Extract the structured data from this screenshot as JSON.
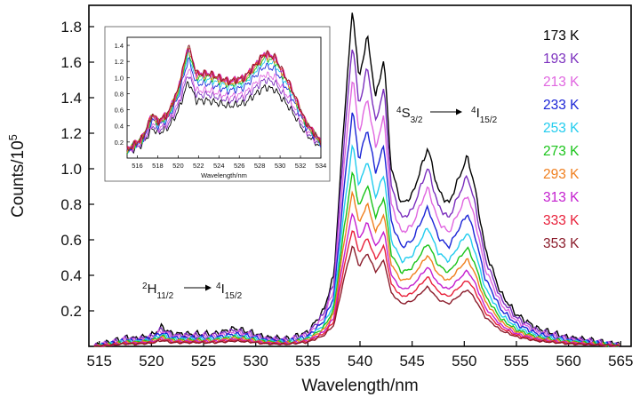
{
  "chart_data": {
    "type": "line",
    "xlabel": "Wavelength/nm",
    "ylabel_main": "Counts/10",
    "ylabel_exp": "5",
    "xlim": [
      514,
      566
    ],
    "ylim": [
      0,
      1.92
    ],
    "xticks": [
      515,
      520,
      525,
      530,
      535,
      540,
      545,
      550,
      555,
      560,
      565
    ],
    "yticks": [
      0.2,
      0.4,
      0.6,
      0.8,
      1.0,
      1.2,
      1.4,
      1.6,
      1.8
    ],
    "ytick_labels": [
      "0.2",
      "0.4",
      "0.6",
      "0.8",
      "1.0",
      "1.2",
      "1.4",
      "1.6",
      "1.8"
    ],
    "legend_position": "right",
    "series": [
      {
        "name": "173 K",
        "color": "#000000",
        "scale": 1.0
      },
      {
        "name": "193 K",
        "color": "#7b2fbe",
        "scale": 0.9
      },
      {
        "name": "213 K",
        "color": "#e066e0",
        "scale": 0.8
      },
      {
        "name": "233 K",
        "color": "#1a24d6",
        "scale": 0.7
      },
      {
        "name": "253 K",
        "color": "#22ccee",
        "scale": 0.6
      },
      {
        "name": "273 K",
        "color": "#19c419",
        "scale": 0.52
      },
      {
        "name": "293 K",
        "color": "#f07f1e",
        "scale": 0.46
      },
      {
        "name": "313 K",
        "color": "#c41ecf",
        "scale": 0.4
      },
      {
        "name": "333 K",
        "color": "#e8203a",
        "scale": 0.35
      },
      {
        "name": "353 K",
        "color": "#8b1c2b",
        "scale": 0.3
      }
    ],
    "peak_profile": [
      {
        "x": 514.5,
        "y": 0.002
      },
      {
        "x": 516.0,
        "y": 0.02
      },
      {
        "x": 517.5,
        "y": 0.05
      },
      {
        "x": 518.5,
        "y": 0.045
      },
      {
        "x": 520.0,
        "y": 0.06
      },
      {
        "x": 521.0,
        "y": 0.11
      },
      {
        "x": 522.0,
        "y": 0.07
      },
      {
        "x": 524.0,
        "y": 0.07
      },
      {
        "x": 526.0,
        "y": 0.07
      },
      {
        "x": 528.0,
        "y": 0.1
      },
      {
        "x": 529.5,
        "y": 0.08
      },
      {
        "x": 531.0,
        "y": 0.05
      },
      {
        "x": 533.0,
        "y": 0.04
      },
      {
        "x": 535.0,
        "y": 0.08
      },
      {
        "x": 536.5,
        "y": 0.2
      },
      {
        "x": 537.5,
        "y": 0.4
      },
      {
        "x": 538.5,
        "y": 1.3
      },
      {
        "x": 539.3,
        "y": 1.91
      },
      {
        "x": 539.9,
        "y": 1.5
      },
      {
        "x": 540.7,
        "y": 1.75
      },
      {
        "x": 541.5,
        "y": 1.4
      },
      {
        "x": 542.3,
        "y": 1.62
      },
      {
        "x": 543.0,
        "y": 1.0
      },
      {
        "x": 544.0,
        "y": 0.8
      },
      {
        "x": 545.0,
        "y": 0.85
      },
      {
        "x": 546.5,
        "y": 1.12
      },
      {
        "x": 547.5,
        "y": 0.88
      },
      {
        "x": 548.5,
        "y": 0.8
      },
      {
        "x": 549.5,
        "y": 0.95
      },
      {
        "x": 550.3,
        "y": 1.07
      },
      {
        "x": 551.0,
        "y": 0.9
      },
      {
        "x": 552.0,
        "y": 0.55
      },
      {
        "x": 553.5,
        "y": 0.3
      },
      {
        "x": 555.0,
        "y": 0.18
      },
      {
        "x": 557.0,
        "y": 0.1
      },
      {
        "x": 560.0,
        "y": 0.05
      },
      {
        "x": 562.5,
        "y": 0.03
      },
      {
        "x": 565.0,
        "y": 0.01
      }
    ],
    "annotations": {
      "h_label": {
        "pre": "2",
        "main": "H",
        "sub": "11/2"
      },
      "h_target": {
        "pre": "4",
        "main": "I",
        "sub": "15/2"
      },
      "s_label": {
        "pre": "4",
        "main": "S",
        "sub": "3/2"
      },
      "s_target": {
        "pre": "4",
        "main": "I",
        "sub": "15/2"
      }
    },
    "inset": {
      "xlabel": "Wavelength/nm",
      "xlim": [
        515,
        534
      ],
      "ylim": [
        0,
        1.5
      ],
      "xticks": [
        516,
        518,
        520,
        522,
        524,
        526,
        528,
        530,
        532,
        534
      ],
      "yticks": [
        0.2,
        0.4,
        0.6,
        0.8,
        1.0,
        1.2,
        1.4
      ],
      "ytick_labels": [
        "0.2",
        "0.4",
        "0.6",
        "0.8",
        "1.0",
        "1.2",
        "1.4"
      ],
      "curve_colors": [
        "#000000",
        "#7b2fbe",
        "#e066e0",
        "#1a24d6",
        "#22ccee",
        "#19c419",
        "#f07f1e",
        "#c41ecf",
        "#e8203a",
        "#8b1c2b"
      ],
      "curve_scales": [
        0.68,
        0.75,
        0.8,
        0.88,
        0.93,
        0.96,
        0.98,
        1.0,
        1.0,
        1.0
      ],
      "peak_profile": [
        {
          "x": 515.0,
          "y": 0.1
        },
        {
          "x": 516.5,
          "y": 0.25
        },
        {
          "x": 517.5,
          "y": 0.55
        },
        {
          "x": 518.0,
          "y": 0.45
        },
        {
          "x": 519.0,
          "y": 0.55
        },
        {
          "x": 520.0,
          "y": 0.85
        },
        {
          "x": 521.0,
          "y": 1.4
        },
        {
          "x": 521.8,
          "y": 1.05
        },
        {
          "x": 523.0,
          "y": 1.05
        },
        {
          "x": 525.0,
          "y": 0.95
        },
        {
          "x": 526.5,
          "y": 1.0
        },
        {
          "x": 527.5,
          "y": 1.15
        },
        {
          "x": 528.5,
          "y": 1.3
        },
        {
          "x": 529.5,
          "y": 1.25
        },
        {
          "x": 531.0,
          "y": 0.9
        },
        {
          "x": 532.5,
          "y": 0.45
        },
        {
          "x": 534.0,
          "y": 0.2
        }
      ]
    }
  }
}
